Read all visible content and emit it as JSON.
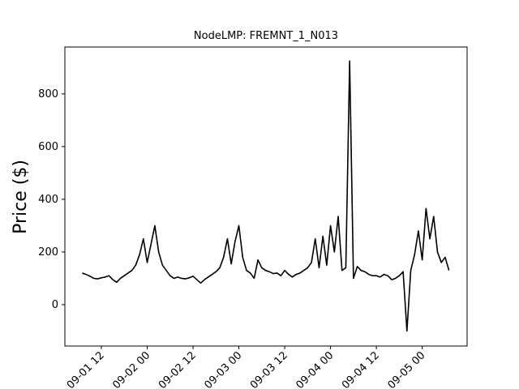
{
  "chart_data": {
    "type": "line",
    "title": "NodeLMP: FREMNT_1_N013",
    "y_label": "Price ($)",
    "x": [
      7,
      8,
      9,
      10,
      11,
      12,
      13,
      14,
      15,
      16,
      17,
      18,
      19,
      20,
      21,
      22,
      23,
      24,
      25,
      26,
      27,
      28,
      29,
      30,
      31,
      32,
      33,
      34,
      35,
      36,
      37,
      38,
      39,
      40,
      41,
      42,
      43,
      44,
      45,
      46,
      47,
      48,
      49,
      50,
      51,
      52,
      53,
      54,
      55,
      56,
      57,
      58,
      59,
      60,
      61,
      62,
      63,
      64,
      65,
      66,
      67,
      68,
      69,
      70,
      71,
      72,
      73,
      74,
      75,
      76,
      77,
      78,
      79,
      80,
      81,
      82,
      83,
      84,
      85,
      86,
      87,
      88,
      89,
      90,
      91,
      92,
      93,
      94,
      95,
      96,
      97,
      98,
      99,
      100,
      101,
      102,
      103
    ],
    "series": [
      {
        "name": "FREMNT_1_N013",
        "color": "#000000",
        "values": [
          120,
          115,
          108,
          100,
          98,
          102,
          105,
          110,
          95,
          85,
          100,
          110,
          120,
          130,
          150,
          190,
          250,
          160,
          230,
          300,
          200,
          150,
          130,
          110,
          100,
          105,
          100,
          98,
          102,
          108,
          95,
          82,
          95,
          105,
          115,
          125,
          140,
          180,
          250,
          155,
          240,
          300,
          180,
          130,
          120,
          100,
          170,
          140,
          130,
          125,
          118,
          120,
          110,
          130,
          115,
          105,
          115,
          120,
          130,
          140,
          160,
          250,
          140,
          260,
          150,
          300,
          200,
          335,
          130,
          140,
          925,
          100,
          145,
          130,
          125,
          115,
          110,
          110,
          105,
          115,
          110,
          95,
          100,
          110,
          125,
          -100,
          130,
          190,
          280,
          170,
          365,
          250,
          335,
          200,
          160,
          180,
          130
        ]
      }
    ],
    "xlim": [
      2.45,
      107.75
    ],
    "xticks": [
      {
        "value": 12,
        "label": "09-01 12"
      },
      {
        "value": 24,
        "label": "09-02 00"
      },
      {
        "value": 36,
        "label": "09-02 12"
      },
      {
        "value": 48,
        "label": "09-03 00"
      },
      {
        "value": 60,
        "label": "09-03 12"
      },
      {
        "value": 72,
        "label": "09-04 00"
      },
      {
        "value": 84,
        "label": "09-04 12"
      },
      {
        "value": 96,
        "label": "09-05 00"
      }
    ],
    "ylim": [
      -157,
      978
    ],
    "yticks": [
      0,
      200,
      400,
      600,
      800
    ]
  }
}
